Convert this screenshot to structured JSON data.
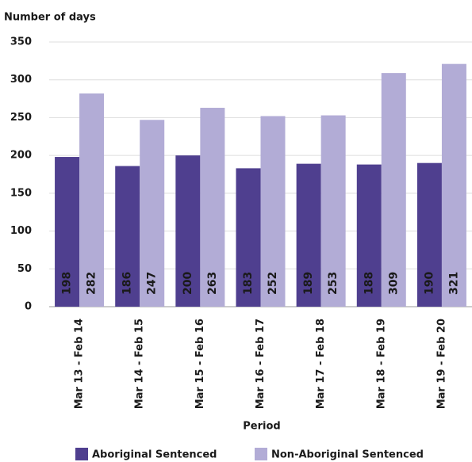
{
  "chart_data": {
    "type": "bar",
    "y_label": "Number of days",
    "x_label": "Period",
    "categories": [
      "Mar 13 - Feb 14",
      "Mar 14 - Feb 15",
      "Mar 15 - Feb 16",
      "Mar 16 - Feb 17",
      "Mar 17 - Feb 18",
      "Mar 18 - Feb 19",
      "Mar 19 - Feb 20"
    ],
    "series": [
      {
        "name": "Aboriginal Sentenced",
        "color": "#4f3f8f",
        "label_color": "#ffffff",
        "values": [
          198,
          186,
          200,
          183,
          189,
          188,
          190
        ]
      },
      {
        "name": "Non-Aboriginal Sentenced",
        "color": "#b2acd6",
        "label_color": "#1a1a1a",
        "values": [
          282,
          247,
          263,
          252,
          253,
          309,
          321
        ]
      }
    ],
    "ylim": [
      0,
      350
    ],
    "yticks": [
      0,
      50,
      100,
      150,
      200,
      250,
      300,
      350
    ],
    "grid": true,
    "legend": "bottom"
  }
}
